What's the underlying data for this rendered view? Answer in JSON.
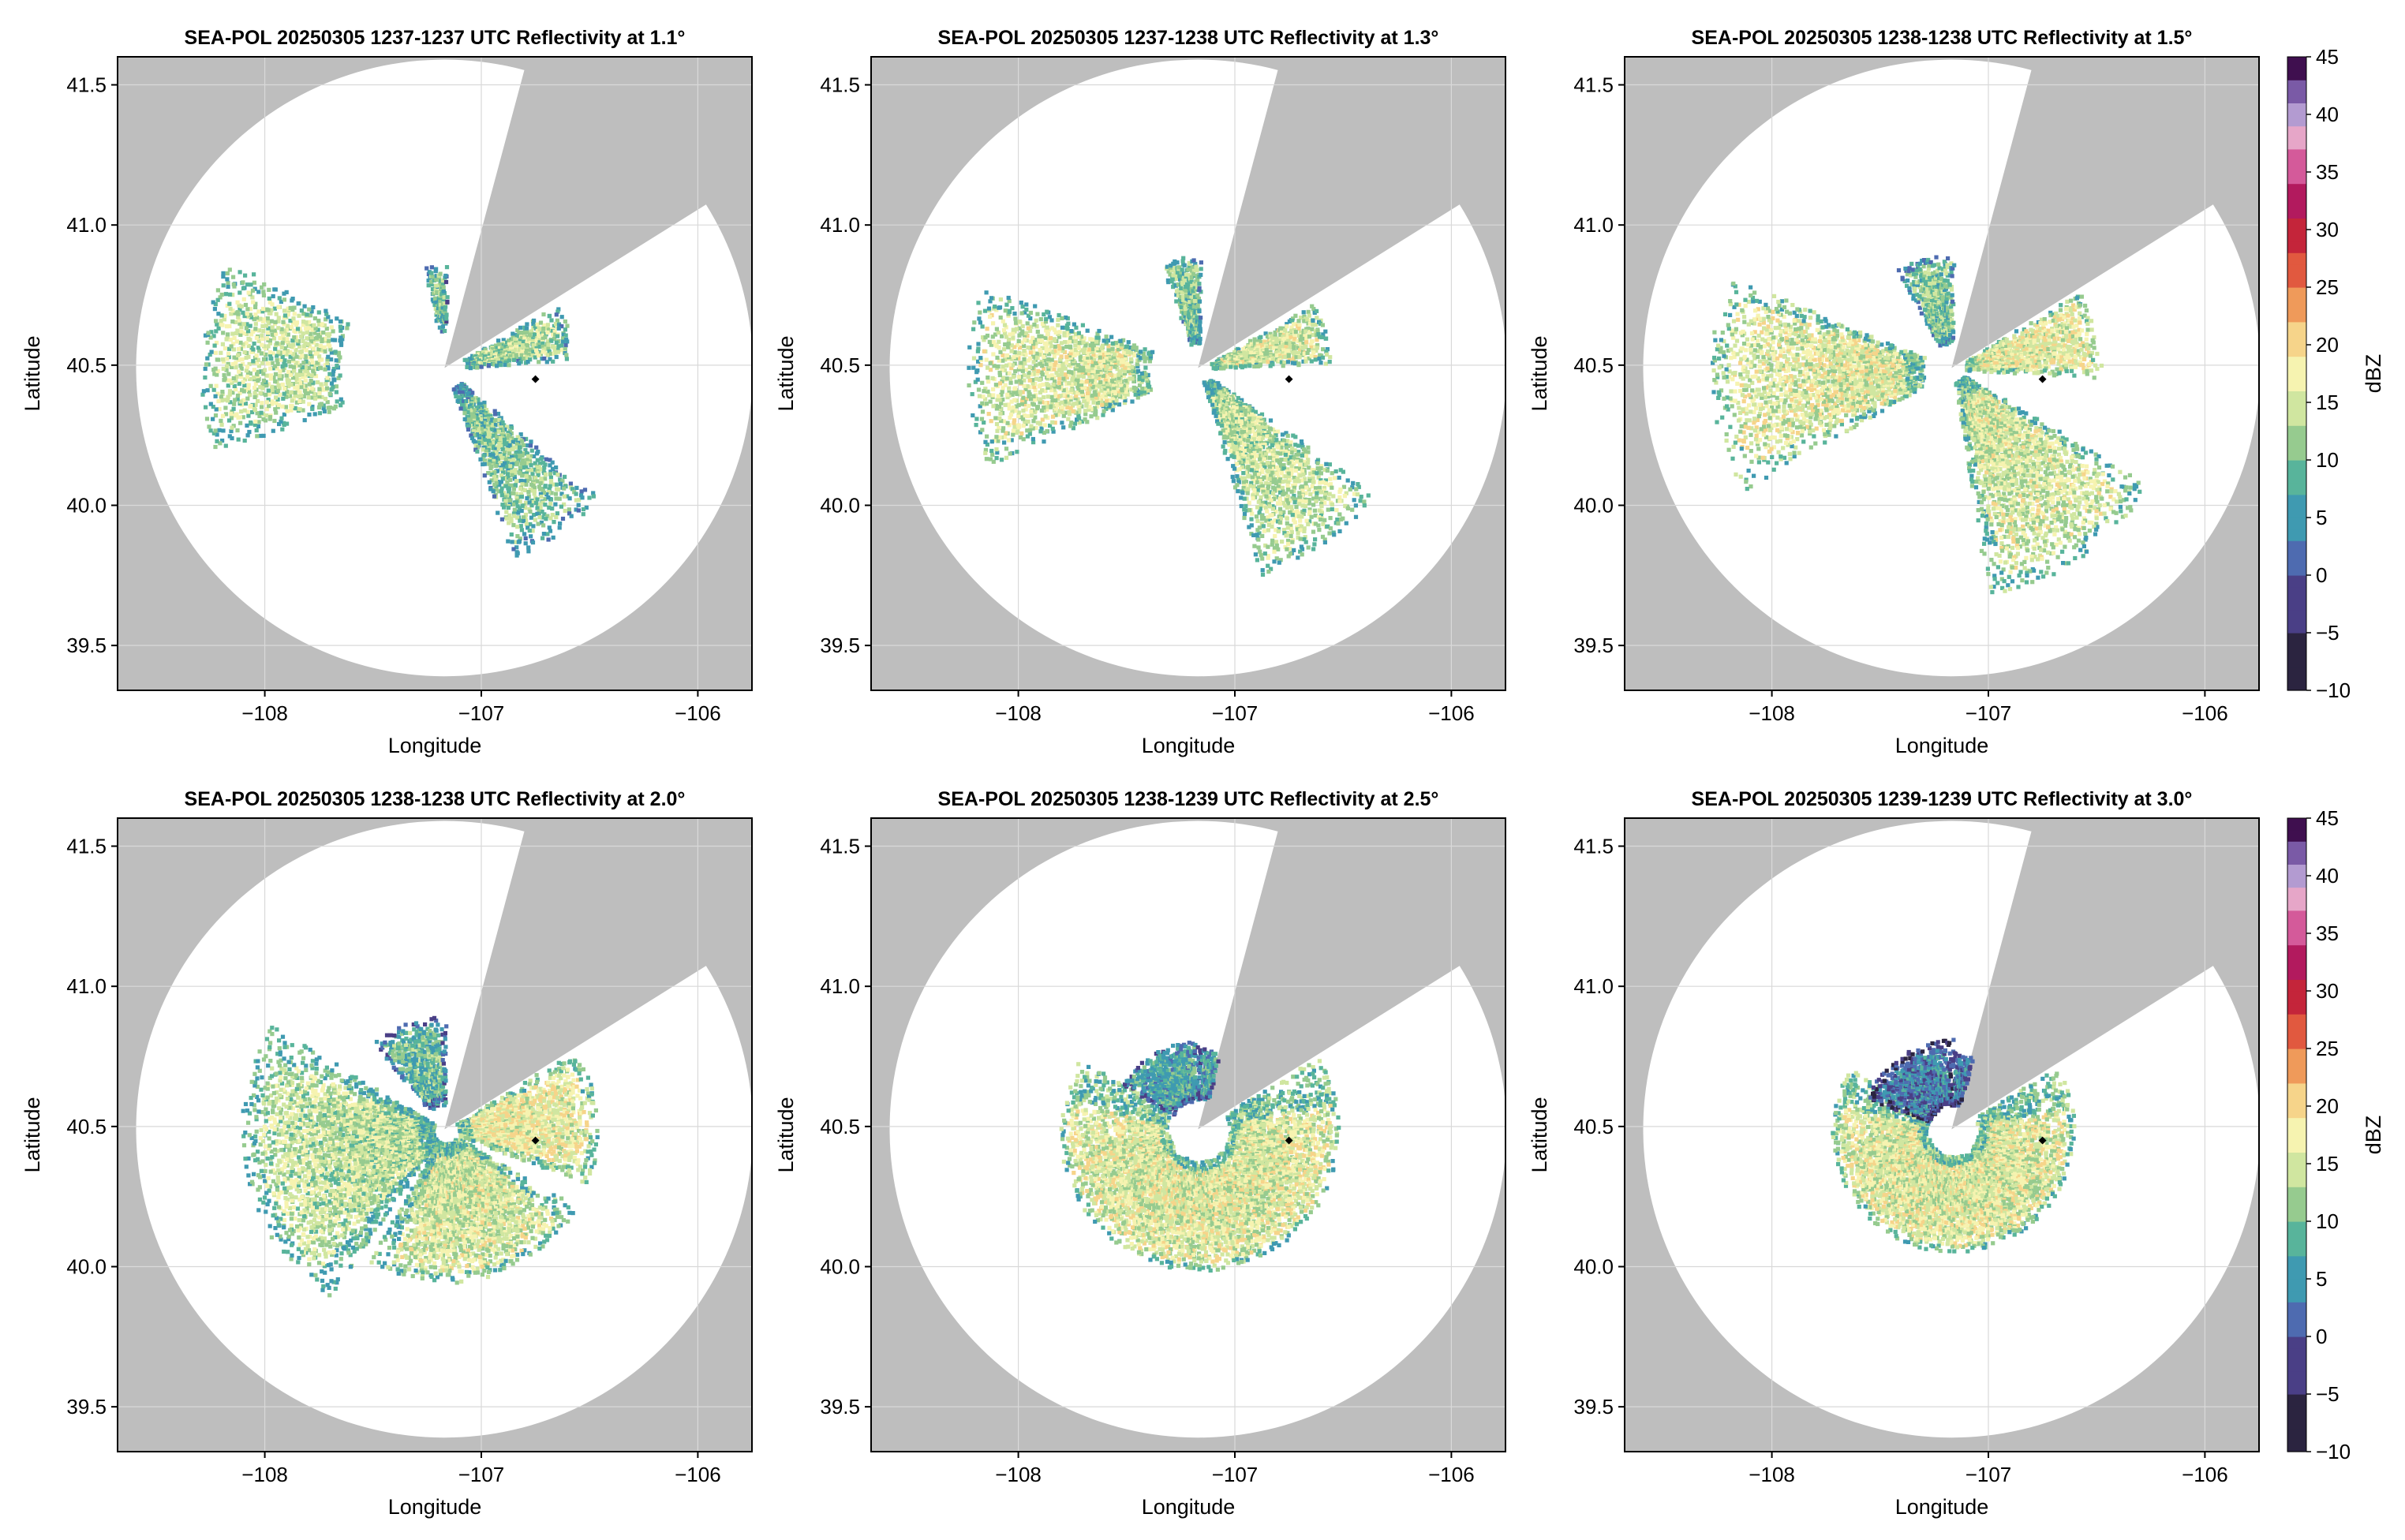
{
  "figure": {
    "colors": {
      "outside_coverage": "#bebebe",
      "grid": "#d9d9d9",
      "frame": "#000000",
      "radar_marker": "#000000",
      "background": "#ffffff"
    }
  },
  "chart_data": [
    {
      "type": "heatmap",
      "title": "SEA-POL 20250305 1237-1237 UTC Reflectivity at 1.1°",
      "xlabel": "Longitude",
      "ylabel": "Latitude",
      "xlim": [
        -108.68,
        -105.75
      ],
      "ylim": [
        39.34,
        41.6
      ],
      "xticks": [
        -108,
        -107,
        -106
      ],
      "xtick_labels": [
        "−108",
        "−107",
        "−106"
      ],
      "yticks": [
        39.5,
        40.0,
        40.5,
        41.0,
        41.5
      ],
      "ytick_labels": [
        "39.5",
        "40.0",
        "40.5",
        "41.0",
        "41.5"
      ],
      "grid": true,
      "radar_center": [
        -107.17,
        40.49
      ],
      "coverage_radius_deg_lat": 1.1,
      "blocked_sector_azimuth_deg": [
        15,
        58
      ],
      "marker_point": [
        -106.75,
        40.45
      ],
      "echo_regions": [
        {
          "az": [
            250,
            295
          ],
          "range_km": [
            42,
            96
          ],
          "dbz": 14
        },
        {
          "az": [
            130,
            160
          ],
          "range_km": [
            8,
            78
          ],
          "dbz": 11
        },
        {
          "az": [
            60,
            84
          ],
          "range_km": [
            8,
            50
          ],
          "dbz": 13
        },
        {
          "az": [
            348,
            360
          ],
          "range_km": [
            15,
            40
          ],
          "dbz": 10
        }
      ]
    },
    {
      "type": "heatmap",
      "title": "SEA-POL 20250305 1237-1238 UTC Reflectivity at 1.3°",
      "xlabel": "Longitude",
      "ylabel": "Latitude",
      "xlim": [
        -108.68,
        -105.75
      ],
      "ylim": [
        39.34,
        41.6
      ],
      "xticks": [
        -108,
        -107,
        -106
      ],
      "xtick_labels": [
        "−108",
        "−107",
        "−106"
      ],
      "yticks": [
        39.5,
        40.0,
        40.5,
        41.0,
        41.5
      ],
      "ytick_labels": [
        "39.5",
        "40.0",
        "40.5",
        "41.0",
        "41.5"
      ],
      "grid": true,
      "radar_center": [
        -107.17,
        40.49
      ],
      "coverage_radius_deg_lat": 1.1,
      "blocked_sector_azimuth_deg": [
        15,
        58
      ],
      "marker_point": [
        -106.75,
        40.45
      ],
      "echo_regions": [
        {
          "az": [
            245,
            290
          ],
          "range_km": [
            20,
            92
          ],
          "dbz": 15
        },
        {
          "az": [
            125,
            162
          ],
          "range_km": [
            5,
            85
          ],
          "dbz": 14
        },
        {
          "az": [
            60,
            86
          ],
          "range_km": [
            5,
            52
          ],
          "dbz": 15
        },
        {
          "az": [
            340,
            360
          ],
          "range_km": [
            10,
            45
          ],
          "dbz": 11
        }
      ]
    },
    {
      "type": "heatmap",
      "title": "SEA-POL 20250305 1238-1238 UTC Reflectivity at 1.5°",
      "xlabel": "Longitude",
      "ylabel": "Latitude",
      "xlim": [
        -108.68,
        -105.75
      ],
      "ylim": [
        39.34,
        41.6
      ],
      "xticks": [
        -108,
        -107,
        -106
      ],
      "xtick_labels": [
        "−108",
        "−107",
        "−106"
      ],
      "yticks": [
        39.5,
        40.0,
        40.5,
        41.0,
        41.5
      ],
      "ytick_labels": [
        "39.5",
        "40.0",
        "40.5",
        "41.0",
        "41.5"
      ],
      "grid": true,
      "radar_center": [
        -107.17,
        40.49
      ],
      "coverage_radius_deg_lat": 1.1,
      "blocked_sector_azimuth_deg": [
        15,
        58
      ],
      "marker_point": [
        -106.75,
        40.45
      ],
      "echo_regions": [
        {
          "az": [
            240,
            292
          ],
          "range_km": [
            12,
            95
          ],
          "dbz": 16
        },
        {
          "az": [
            120,
            170
          ],
          "range_km": [
            5,
            90
          ],
          "dbz": 15
        },
        {
          "az": [
            58,
            92
          ],
          "range_km": [
            5,
            58
          ],
          "dbz": 17
        },
        {
          "az": [
            330,
            360
          ],
          "range_km": [
            10,
            45
          ],
          "dbz": 11
        }
      ]
    },
    {
      "type": "heatmap",
      "title": "SEA-POL 20250305 1238-1238 UTC Reflectivity at 2.0°",
      "xlabel": "Longitude",
      "ylabel": "Latitude",
      "xlim": [
        -108.68,
        -105.75
      ],
      "ylim": [
        39.34,
        41.6
      ],
      "xticks": [
        -108,
        -107,
        -106
      ],
      "xtick_labels": [
        "−108",
        "−107",
        "−106"
      ],
      "yticks": [
        39.5,
        40.0,
        40.5,
        41.0,
        41.5
      ],
      "ytick_labels": [
        "39.5",
        "40.0",
        "40.5",
        "41.0",
        "41.5"
      ],
      "grid": true,
      "radar_center": [
        -107.17,
        40.49
      ],
      "coverage_radius_deg_lat": 1.1,
      "blocked_sector_azimuth_deg": [
        15,
        58
      ],
      "marker_point": [
        -106.75,
        40.45
      ],
      "echo_regions": [
        {
          "az": [
            215,
            300
          ],
          "range_km": [
            5,
            80
          ],
          "dbz": 14
        },
        {
          "az": [
            120,
            210
          ],
          "range_km": [
            5,
            60
          ],
          "dbz": 15
        },
        {
          "az": [
            58,
            110
          ],
          "range_km": [
            5,
            60
          ],
          "dbz": 17
        },
        {
          "az": [
            320,
            360
          ],
          "range_km": [
            10,
            45
          ],
          "dbz": 9
        }
      ]
    },
    {
      "type": "heatmap",
      "title": "SEA-POL 20250305 1238-1239 UTC Reflectivity at 2.5°",
      "xlabel": "Longitude",
      "ylabel": "Latitude",
      "xlim": [
        -108.68,
        -105.75
      ],
      "ylim": [
        39.34,
        41.6
      ],
      "xticks": [
        -108,
        -107,
        -106
      ],
      "xtick_labels": [
        "−108",
        "−107",
        "−106"
      ],
      "yticks": [
        39.5,
        40.0,
        40.5,
        41.0,
        41.5
      ],
      "ytick_labels": [
        "39.5",
        "40.0",
        "40.5",
        "41.0",
        "41.5"
      ],
      "grid": true,
      "radar_center": [
        -107.17,
        40.49
      ],
      "coverage_radius_deg_lat": 1.1,
      "blocked_sector_azimuth_deg": [
        15,
        58
      ],
      "marker_point": [
        -106.75,
        40.45
      ],
      "echo_regions": [
        {
          "az": [
            58,
            300
          ],
          "range_km": [
            12,
            55
          ],
          "dbz": 16
        },
        {
          "az": [
            300,
            360
          ],
          "range_km": [
            12,
            35
          ],
          "dbz": 7
        },
        {
          "az": [
            0,
            15
          ],
          "range_km": [
            12,
            32
          ],
          "dbz": 6
        }
      ]
    },
    {
      "type": "heatmap",
      "title": "SEA-POL 20250305 1239-1239 UTC Reflectivity at 3.0°",
      "xlabel": "Longitude",
      "ylabel": "Latitude",
      "xlim": [
        -108.68,
        -105.75
      ],
      "ylim": [
        39.34,
        41.6
      ],
      "xticks": [
        -108,
        -107,
        -106
      ],
      "xtick_labels": [
        "−108",
        "−107",
        "−106"
      ],
      "yticks": [
        39.5,
        40.0,
        40.5,
        41.0,
        41.5
      ],
      "ytick_labels": [
        "39.5",
        "40.0",
        "40.5",
        "41.0",
        "41.5"
      ],
      "grid": true,
      "radar_center": [
        -107.17,
        40.49
      ],
      "coverage_radius_deg_lat": 1.1,
      "blocked_sector_azimuth_deg": [
        15,
        58
      ],
      "marker_point": [
        -106.75,
        40.45
      ],
      "echo_regions": [
        {
          "az": [
            58,
            300
          ],
          "range_km": [
            10,
            48
          ],
          "dbz": 16
        },
        {
          "az": [
            290,
            360
          ],
          "range_km": [
            10,
            35
          ],
          "dbz": 3
        },
        {
          "az": [
            0,
            15
          ],
          "range_km": [
            10,
            30
          ],
          "dbz": 3
        }
      ]
    }
  ],
  "colorbars": [
    {
      "label": "dBZ",
      "range": [
        -10,
        45
      ],
      "ticks": [
        -10,
        -5,
        0,
        5,
        10,
        15,
        20,
        25,
        30,
        35,
        40,
        45
      ],
      "tick_labels": [
        "−10",
        "−5",
        "0",
        "5",
        "10",
        "15",
        "20",
        "25",
        "30",
        "35",
        "40",
        "45"
      ],
      "stops": [
        [
          -10,
          "#000000"
        ],
        [
          -5,
          "#2b2440"
        ],
        [
          0,
          "#4a3f86"
        ],
        [
          3,
          "#4e6bb0"
        ],
        [
          7,
          "#3f9ab1"
        ],
        [
          10,
          "#58b49b"
        ],
        [
          13,
          "#96cb8f"
        ],
        [
          16,
          "#d0e6a0"
        ],
        [
          19,
          "#f6f3b0"
        ],
        [
          22,
          "#f6d48a"
        ],
        [
          25,
          "#ef9a5a"
        ],
        [
          28,
          "#e1593f"
        ],
        [
          31,
          "#c4253a"
        ],
        [
          34,
          "#b21a5e"
        ],
        [
          37,
          "#d45a9a"
        ],
        [
          39,
          "#e6a6c8"
        ],
        [
          41,
          "#b39bd1"
        ],
        [
          43,
          "#7a5aa6"
        ],
        [
          45,
          "#3f0f4f"
        ]
      ]
    },
    {
      "label": "dBZ",
      "range": [
        -10,
        45
      ],
      "ticks": [
        -10,
        -5,
        0,
        5,
        10,
        15,
        20,
        25,
        30,
        35,
        40,
        45
      ],
      "tick_labels": [
        "−10",
        "−5",
        "0",
        "5",
        "10",
        "15",
        "20",
        "25",
        "30",
        "35",
        "40",
        "45"
      ],
      "stops": [
        [
          -10,
          "#000000"
        ],
        [
          -5,
          "#2b2440"
        ],
        [
          0,
          "#4a3f86"
        ],
        [
          3,
          "#4e6bb0"
        ],
        [
          7,
          "#3f9ab1"
        ],
        [
          10,
          "#58b49b"
        ],
        [
          13,
          "#96cb8f"
        ],
        [
          16,
          "#d0e6a0"
        ],
        [
          19,
          "#f6f3b0"
        ],
        [
          22,
          "#f6d48a"
        ],
        [
          25,
          "#ef9a5a"
        ],
        [
          28,
          "#e1593f"
        ],
        [
          31,
          "#c4253a"
        ],
        [
          34,
          "#b21a5e"
        ],
        [
          37,
          "#d45a9a"
        ],
        [
          39,
          "#e6a6c8"
        ],
        [
          41,
          "#b39bd1"
        ],
        [
          43,
          "#7a5aa6"
        ],
        [
          45,
          "#3f0f4f"
        ]
      ]
    }
  ]
}
